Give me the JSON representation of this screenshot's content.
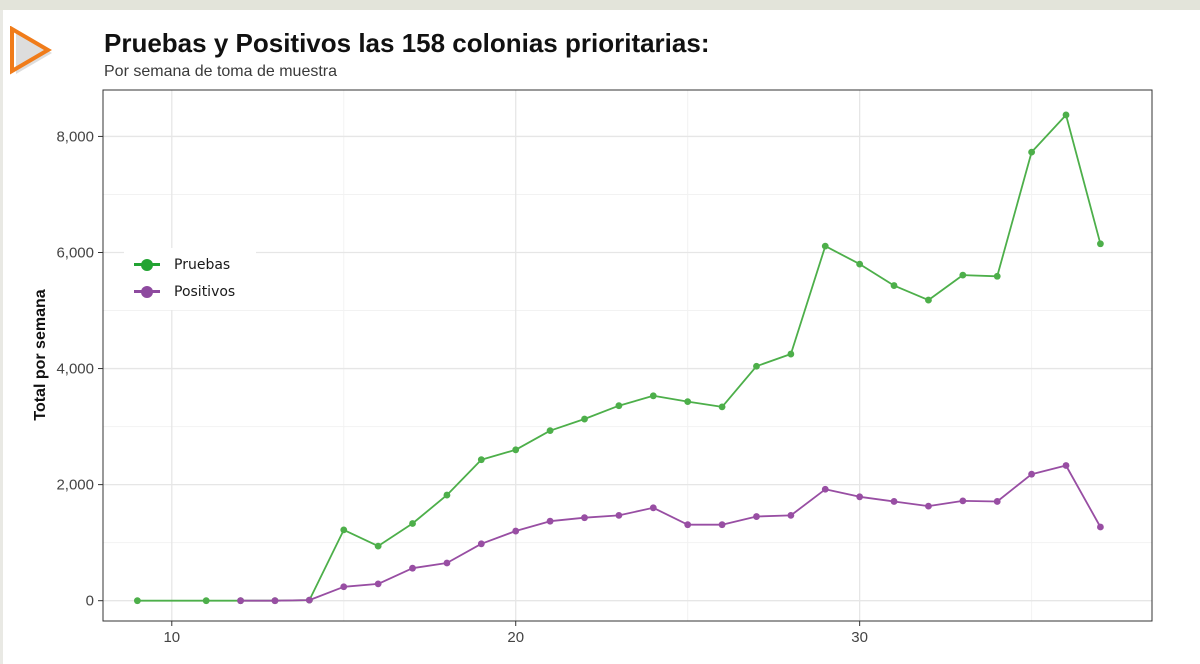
{
  "header": {
    "title": "Pruebas y Positivos las 158 colonias prioritarias:",
    "subtitle": "Por semana de toma de muestra"
  },
  "logo": {
    "icon": "play-triangle-icon",
    "color": "#f07c1a"
  },
  "chart_data": {
    "type": "line",
    "title": "Pruebas y Positivos las 158 colonias prioritarias:",
    "subtitle": "Por semana de toma de muestra",
    "xlabel": "",
    "ylabel": "Total por semana",
    "xlim": [
      8,
      38.5
    ],
    "ylim": [
      -350,
      8800
    ],
    "x_ticks": [
      10,
      20,
      30
    ],
    "y_ticks": [
      0,
      2000,
      4000,
      6000,
      8000
    ],
    "y_tick_labels": [
      "0",
      "2,000",
      "4,000",
      "6,000",
      "8,000"
    ],
    "grid": true,
    "legend_position": "left",
    "series": [
      {
        "name": "Pruebas",
        "color": "#4daf4a",
        "points": [
          [
            9,
            0
          ],
          [
            11,
            0
          ],
          [
            12,
            0
          ],
          [
            13,
            0
          ],
          [
            14,
            10
          ],
          [
            15,
            1220
          ],
          [
            16,
            940
          ],
          [
            17,
            1330
          ],
          [
            18,
            1820
          ],
          [
            19,
            2430
          ],
          [
            20,
            2600
          ],
          [
            21,
            2930
          ],
          [
            22,
            3130
          ],
          [
            23,
            3360
          ],
          [
            24,
            3530
          ],
          [
            25,
            3430
          ],
          [
            26,
            3340
          ],
          [
            27,
            4040
          ],
          [
            28,
            4250
          ],
          [
            29,
            6110
          ],
          [
            30,
            5800
          ],
          [
            31,
            5430
          ],
          [
            32,
            5180
          ],
          [
            33,
            5610
          ],
          [
            34,
            5590
          ],
          [
            35,
            7730
          ],
          [
            36,
            8370
          ],
          [
            37,
            6150
          ]
        ]
      },
      {
        "name": "Positivos",
        "color": "#984ea3",
        "points": [
          [
            12,
            0
          ],
          [
            13,
            0
          ],
          [
            14,
            10
          ],
          [
            15,
            240
          ],
          [
            16,
            290
          ],
          [
            17,
            560
          ],
          [
            18,
            650
          ],
          [
            19,
            980
          ],
          [
            20,
            1200
          ],
          [
            21,
            1370
          ],
          [
            22,
            1430
          ],
          [
            23,
            1470
          ],
          [
            24,
            1600
          ],
          [
            25,
            1310
          ],
          [
            26,
            1310
          ],
          [
            27,
            1450
          ],
          [
            28,
            1470
          ],
          [
            29,
            1920
          ],
          [
            30,
            1790
          ],
          [
            31,
            1710
          ],
          [
            32,
            1630
          ],
          [
            33,
            1720
          ],
          [
            34,
            1710
          ],
          [
            35,
            2180
          ],
          [
            36,
            2330
          ],
          [
            37,
            1270
          ]
        ]
      }
    ]
  },
  "legend": {
    "items": [
      {
        "label": "Pruebas",
        "color": "#22a332"
      },
      {
        "label": "Positivos",
        "color": "#8e4a9f"
      }
    ]
  }
}
